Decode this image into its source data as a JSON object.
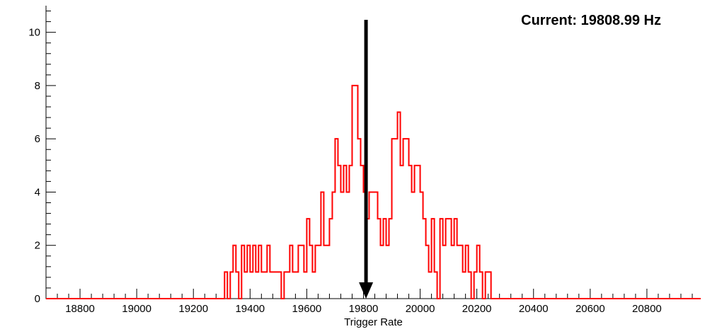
{
  "page": {
    "background": "#ffffff"
  },
  "chart_data": {
    "type": "bar",
    "style": "step-histogram",
    "xlabel": "Trigger Rate",
    "annotation": "Current: 19808.99 Hz",
    "current_value_hz": 19808.99,
    "xlim": [
      18680,
      20990
    ],
    "ylim": [
      0,
      11
    ],
    "x_major_ticks": [
      18800,
      19000,
      19200,
      19400,
      19600,
      19800,
      20000,
      20200,
      20400,
      20600,
      20800
    ],
    "x_major_step": 200,
    "x_minor_step": 40,
    "y_major_ticks": [
      0,
      2,
      4,
      6,
      8,
      10
    ],
    "y_minor_step": 0.4,
    "grid": false,
    "bins": {
      "start": 19300,
      "width": 10,
      "counts": [
        0,
        1,
        0,
        1,
        2,
        1,
        0,
        2,
        1,
        2,
        1,
        2,
        1,
        2,
        1,
        1,
        2,
        1,
        1,
        1,
        1,
        0,
        1,
        1,
        2,
        1,
        1,
        2,
        2,
        1,
        3,
        2,
        1,
        2,
        2,
        4,
        2,
        2,
        3,
        4,
        6,
        5,
        4,
        5,
        4,
        5,
        8,
        8,
        6,
        5,
        4,
        3,
        4,
        4,
        4,
        3,
        2,
        3,
        2,
        3,
        6,
        6,
        7,
        5,
        6,
        6,
        5,
        4,
        5,
        5,
        4,
        3,
        2,
        1,
        3,
        1,
        0,
        3,
        2,
        3,
        3,
        2,
        3,
        2,
        2,
        1,
        2,
        1,
        0,
        1,
        2,
        1,
        0,
        1,
        1,
        0
      ]
    },
    "marker_arrow": {
      "x": 19808.99,
      "color": "#000000"
    },
    "colors": {
      "line": "#ff0000",
      "axis": "#000000",
      "text": "#000000"
    }
  }
}
